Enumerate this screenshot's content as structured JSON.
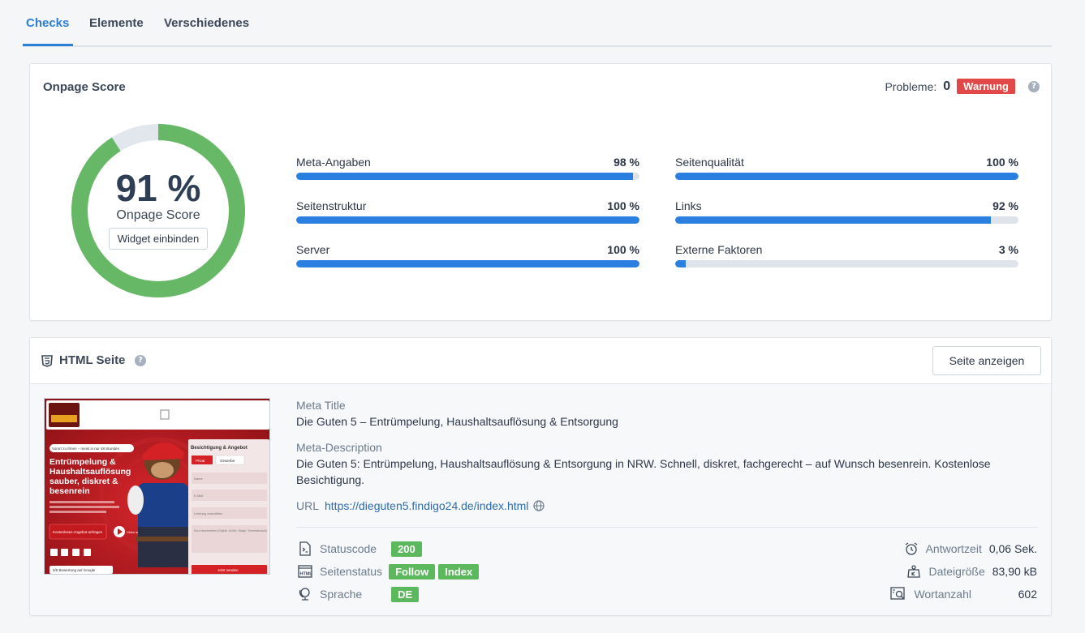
{
  "tabs": [
    {
      "label": "Checks",
      "active": true
    },
    {
      "label": "Elemente",
      "active": false
    },
    {
      "label": "Verschiedenes",
      "active": false
    }
  ],
  "score_card": {
    "title": "Onpage Score",
    "probleme_label": "Probleme:",
    "probleme_count": "0",
    "warning_badge": "Warnung",
    "score_percent": 91,
    "score_text": "91 %",
    "score_label": "Onpage Score",
    "widget_button": "Widget einbinden",
    "ring_color": "#66b866",
    "ring_bg_color": "#e2e7ee",
    "metrics": [
      {
        "label": "Meta-Angaben",
        "value_text": "98 %",
        "value": 98
      },
      {
        "label": "Seitenqualität",
        "value_text": "100 %",
        "value": 100
      },
      {
        "label": "Seitenstruktur",
        "value_text": "100 %",
        "value": 100
      },
      {
        "label": "Links",
        "value_text": "92 %",
        "value": 92
      },
      {
        "label": "Server",
        "value_text": "100 %",
        "value": 100
      },
      {
        "label": "Externe Faktoren",
        "value_text": "3 %",
        "value": 3
      }
    ]
  },
  "html_card": {
    "title": "HTML Seite",
    "view_button": "Seite anzeigen",
    "meta_title_label": "Meta Title",
    "meta_title": "Die Guten 5 – Entrümpelung, Haushaltsauflösung & Entsorgung",
    "meta_desc_label": "Meta-Description",
    "meta_desc": "Die Guten 5: Entrümpelung, Haushaltsauflösung & Entsorgung in NRW. Schnell, diskret, fachgerecht – auf Wunsch besenrein. Kostenlose Besichtigung.",
    "url_label": "URL",
    "url": "https://dieguten5.findigo24.de/index.html",
    "statuscode_label": "Statuscode",
    "statuscode": "200",
    "seitenstatus_label": "Seitenstatus",
    "seitenstatus_tags": [
      "Follow",
      "Index"
    ],
    "sprache_label": "Sprache",
    "sprache": "DE",
    "antwortzeit_label": "Antwortzeit",
    "antwortzeit": "0,06 Sek.",
    "dateigroesse_label": "Dateigröße",
    "dateigroesse": "83,90 kB",
    "wortanzahl_label": "Wortanzahl",
    "wortanzahl": "602",
    "tag_color": "#5cb85c"
  },
  "thumbnail": {
    "banner": "Vorort zu Ihnen – meist in nur 48 Stunden",
    "headline_1": "Entrümpelung &",
    "headline_2": "Haushaltsauflösung",
    "headline_3": "sauber, diskret &",
    "headline_4": "besenrein",
    "form_title": "Besichtigung & Angebot",
    "form_tab_1": "Privat",
    "form_tab_2": "Gewerbe",
    "field_name": "Name",
    "field_email": "E-Mail",
    "field_select": "Leistung auswählen",
    "field_msg": "Kurz beschreiben (Objekt, Größe, Etage, Terminwunsch)",
    "cta": "Kostenloses Angebot anfragen",
    "video": "Video ansehen",
    "submit": "Jetzt senden",
    "rating": "5/5 Bewertung auf Google"
  }
}
